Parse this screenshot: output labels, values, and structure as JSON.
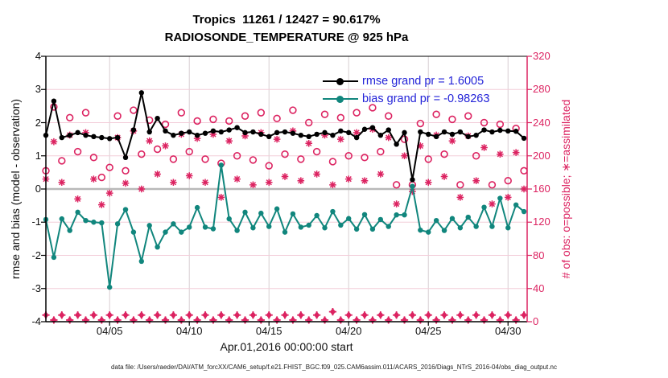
{
  "titles": {
    "line1": "Tropics  11261 / 12427 = 90.617%",
    "line2": "RADIOSONDE_TEMPERATURE @ 925 hPa"
  },
  "axes": {
    "left_label": "rmse and bias (model - observation)",
    "left_ticks": [
      4,
      3,
      2,
      1,
      0,
      -1,
      -2,
      -3,
      -4
    ],
    "right_label": "# of obs: o=possible; ∗=assimilated",
    "right_ticks": [
      320,
      280,
      240,
      200,
      160,
      120,
      80,
      40,
      0
    ],
    "x_ticks": [
      "04/05",
      "04/10",
      "04/15",
      "04/20",
      "04/25",
      "04/30"
    ],
    "x_tick_days": [
      4,
      9,
      14,
      19,
      24,
      29
    ],
    "x_label": "Apr.01,2016 00:00:00 start"
  },
  "legend": [
    {
      "label": "rmse grand pr = 1.6005",
      "color": "#000000"
    },
    {
      "label": "bias grand pr = -0.98263",
      "color": "#11867d"
    }
  ],
  "footer": "data file: /Users/raeder/DAI/ATM_forcXX/CAM6_setup/f.e21.FHIST_BGC.f09_025.CAM6assim.011/ACARS_2016/Diags_NTrS_2016-04/obs_diag_output.nc",
  "colors": {
    "crimson": "#dc2361",
    "teal": "#11867d",
    "black": "#000000",
    "grid_pink": "#f3cdd9",
    "grid_gray_vertical": "#d8ced2",
    "zero_line": "#b9b9b9",
    "legend_text": "#2323d8"
  },
  "chart_data": {
    "type": "line",
    "title": "Tropics  11261 / 12427 = 90.617% | RADIOSONDE_TEMPERATURE @ 925 hPa",
    "x_start_day": 0,
    "x_step_days": 0.5,
    "n_points": 61,
    "x_range_days": [
      0,
      30.2
    ],
    "left_ylim": [
      -4,
      4
    ],
    "right_ylim": [
      0,
      320
    ],
    "grid": true,
    "legend_position": "upper-right-inside",
    "series": [
      {
        "name": "rmse",
        "axis": "left",
        "color": "#000000",
        "marker": "filled-circle",
        "line": true,
        "values": [
          1.62,
          2.65,
          1.55,
          1.62,
          1.7,
          1.62,
          1.58,
          1.55,
          1.52,
          1.55,
          0.95,
          1.78,
          2.9,
          1.72,
          2.13,
          1.75,
          1.62,
          1.68,
          1.72,
          1.62,
          1.68,
          1.75,
          1.72,
          1.78,
          1.85,
          1.7,
          1.72,
          1.65,
          1.58,
          1.7,
          1.72,
          1.68,
          1.62,
          1.58,
          1.65,
          1.7,
          1.62,
          1.75,
          1.7,
          1.55,
          1.8,
          1.85,
          1.62,
          1.78,
          1.35,
          1.7,
          0.28,
          1.72,
          1.65,
          1.58,
          1.72,
          1.65,
          1.72,
          1.58,
          1.62,
          1.78,
          1.72,
          1.77,
          1.75,
          1.74,
          1.53
        ]
      },
      {
        "name": "bias",
        "axis": "left",
        "color": "#11867d",
        "marker": "filled-circle",
        "line": true,
        "values": [
          -0.92,
          -2.06,
          -0.9,
          -1.25,
          -0.7,
          -0.95,
          -1.0,
          -1.02,
          -2.96,
          -1.05,
          -0.62,
          -1.3,
          -2.18,
          -1.1,
          -1.75,
          -1.3,
          -1.05,
          -1.3,
          -1.15,
          -0.56,
          -1.15,
          -1.2,
          0.72,
          -0.9,
          -1.25,
          -0.7,
          -1.17,
          -0.73,
          -1.13,
          -0.6,
          -1.3,
          -0.75,
          -1.15,
          -1.09,
          -0.8,
          -1.17,
          -0.68,
          -1.09,
          -0.89,
          -1.21,
          -0.77,
          -1.21,
          -0.92,
          -1.13,
          -0.78,
          -0.78,
          0.08,
          -1.24,
          -1.3,
          -0.95,
          -1.25,
          -0.89,
          -1.17,
          -0.85,
          -1.13,
          -0.55,
          -1.13,
          -0.28,
          -1.17,
          -0.48,
          -0.68
        ]
      },
      {
        "name": "possible",
        "axis": "right",
        "color": "#dc2361",
        "marker": "open-circle",
        "line": false,
        "values": [
          182,
          259,
          194,
          246,
          205,
          252,
          198,
          174,
          186,
          248,
          182,
          255,
          202,
          243,
          208,
          238,
          196,
          252,
          205,
          242,
          196,
          244,
          191,
          242,
          200,
          248,
          195,
          252,
          188,
          245,
          202,
          255,
          196,
          240,
          205,
          250,
          193,
          246,
          200,
          252,
          198,
          258,
          205,
          248,
          165,
          220,
          165,
          239,
          196,
          250,
          202,
          244,
          165,
          248,
          200,
          240,
          165,
          238,
          170,
          233,
          182
        ]
      },
      {
        "name": "assimilated",
        "axis": "right",
        "color": "#dc2361",
        "marker": "asterisk",
        "line": false,
        "values": [
          172,
          217,
          168,
          225,
          148,
          228,
          172,
          141,
          155,
          222,
          167,
          230,
          160,
          218,
          178,
          212,
          168,
          226,
          176,
          221,
          168,
          226,
          150,
          218,
          172,
          224,
          165,
          228,
          168,
          220,
          175,
          230,
          170,
          215,
          178,
          225,
          165,
          220,
          172,
          228,
          170,
          232,
          178,
          222,
          142,
          200,
          157,
          212,
          168,
          225,
          175,
          218,
          150,
          224,
          170,
          210,
          142,
          202,
          150,
          204,
          160
        ]
      },
      {
        "name": "bottom_markers",
        "axis": "right",
        "color": "#dc2361",
        "marker": "filled-diamond-plus",
        "line": false,
        "values": [
          8,
          2,
          8,
          2,
          8,
          2,
          8,
          2,
          8,
          2,
          8,
          2,
          8,
          2,
          8,
          2,
          8,
          2,
          8,
          2,
          8,
          2,
          8,
          2,
          8,
          2,
          8,
          2,
          8,
          2,
          8,
          2,
          8,
          2,
          8,
          2,
          12,
          2,
          8,
          2,
          8,
          2,
          8,
          2,
          8,
          2,
          8,
          2,
          8,
          2,
          8,
          2,
          8,
          2,
          8,
          2,
          8,
          2,
          8,
          2,
          8
        ]
      }
    ]
  }
}
